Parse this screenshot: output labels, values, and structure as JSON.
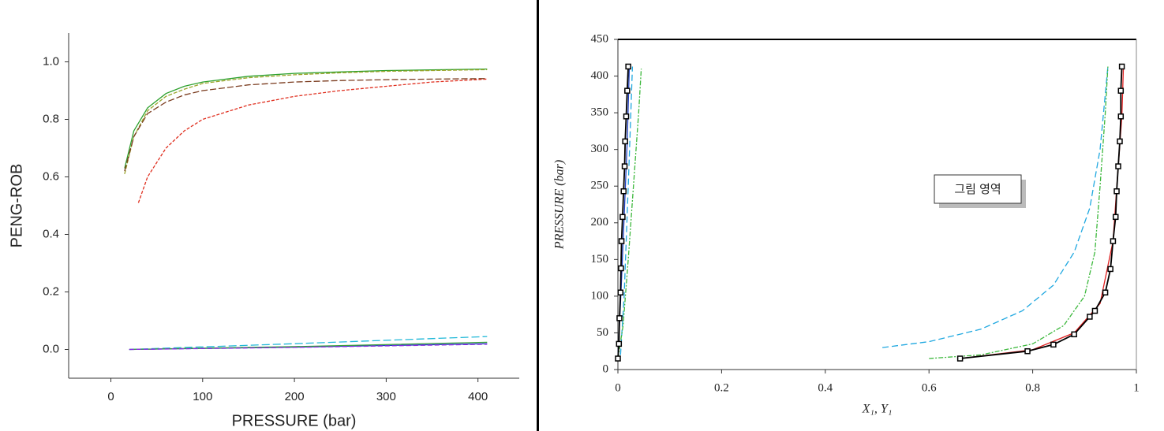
{
  "chart_data": [
    {
      "type": "line",
      "x_label": "PRESSURE (bar)",
      "y_label": "PENG-ROB",
      "xlim": [
        -46,
        445
      ],
      "xticks": [
        0,
        100,
        200,
        300,
        400
      ],
      "ylim": [
        -0.1,
        1.1
      ],
      "yticks": [
        {
          "value": 0,
          "label": "0.0"
        },
        {
          "value": 0.2,
          "label": "0.2"
        },
        {
          "value": 0.4,
          "label": "0.4"
        },
        {
          "value": 0.6,
          "label": "0.6"
        },
        {
          "value": 0.8,
          "label": "0.8"
        },
        {
          "value": 1.0,
          "label": "1.0"
        }
      ],
      "grid": false,
      "frame": false,
      "series": [
        {
          "color": "#2ca02c",
          "x": [
            15,
            25,
            40,
            60,
            80,
            100,
            150,
            200,
            250,
            300,
            350,
            410
          ],
          "values": [
            0.63,
            0.76,
            0.84,
            0.89,
            0.915,
            0.93,
            0.95,
            0.96,
            0.965,
            0.97,
            0.972,
            0.975
          ]
        },
        {
          "color": "#9aa52a",
          "dash": "5,2",
          "x": [
            15,
            25,
            40,
            60,
            80,
            100,
            150,
            200,
            250,
            300,
            350,
            410
          ],
          "values": [
            0.61,
            0.74,
            0.83,
            0.88,
            0.905,
            0.925,
            0.945,
            0.955,
            0.962,
            0.967,
            0.97,
            0.973
          ]
        },
        {
          "color": "#7a3b1e",
          "dash": "8,3",
          "x": [
            15,
            25,
            40,
            60,
            80,
            100,
            150,
            200,
            250,
            300,
            350,
            410
          ],
          "values": [
            0.62,
            0.74,
            0.82,
            0.86,
            0.885,
            0.9,
            0.92,
            0.93,
            0.935,
            0.938,
            0.94,
            0.942
          ]
        },
        {
          "color": "#e03020",
          "dash": "4,2",
          "x": [
            30,
            40,
            60,
            80,
            100,
            150,
            200,
            250,
            300,
            350,
            410
          ],
          "values": [
            0.51,
            0.6,
            0.7,
            0.76,
            0.8,
            0.85,
            0.88,
            0.9,
            0.915,
            0.93,
            0.94
          ]
        },
        {
          "color": "#1f3fbf",
          "x": [
            20,
            200,
            410
          ],
          "values": [
            0,
            0.008,
            0.02
          ]
        },
        {
          "color": "#20b8d8",
          "dash": "10,4",
          "x": [
            20,
            200,
            410
          ],
          "values": [
            0,
            0.02,
            0.045
          ]
        },
        {
          "color": "#3aa03a",
          "x": [
            20,
            200,
            410
          ],
          "values": [
            0,
            0.01,
            0.025
          ]
        },
        {
          "color": "#8a2be2",
          "dash": "6,3",
          "x": [
            20,
            200,
            410
          ],
          "values": [
            0,
            0.007,
            0.018
          ]
        }
      ]
    },
    {
      "type": "line",
      "x_label": "X₁, Y₁",
      "y_label": "PRESSURE (bar)",
      "xlim": [
        0,
        1
      ],
      "xticks": [
        0,
        0.2,
        0.4,
        0.6,
        0.8,
        1
      ],
      "ylim": [
        0,
        450
      ],
      "yticks": [
        0,
        50,
        100,
        150,
        200,
        250,
        300,
        350,
        400,
        450
      ],
      "grid": false,
      "frame": true,
      "annotation": "그림 영역",
      "series": [
        {
          "color": "#20a8e0",
          "dash": "8,4",
          "x": [
            0.005,
            0.012,
            0.02,
            0.025,
            0.028,
            null,
            0.51,
            0.6,
            0.7,
            0.78,
            0.84,
            0.88,
            0.91,
            0.93,
            0.945
          ],
          "values": [
            20,
            100,
            250,
            350,
            413,
            null,
            30,
            38,
            55,
            80,
            115,
            160,
            220,
            300,
            413
          ]
        },
        {
          "color": "#3cb83c",
          "dash": "6,2,2,2",
          "x": [
            0,
            0.01,
            0.02,
            0.03,
            0.04,
            0.045,
            null,
            0.6,
            0.7,
            0.8,
            0.86,
            0.9,
            0.92,
            0.93,
            0.94,
            0.945
          ],
          "values": [
            15,
            60,
            150,
            250,
            350,
            410,
            null,
            15,
            20,
            35,
            60,
            100,
            160,
            250,
            350,
            413
          ]
        },
        {
          "color": "#1f3fbf",
          "x": [
            0,
            0.006,
            0.012,
            0.018,
            0.022
          ],
          "values": [
            15,
            105,
            208,
            311,
            413
          ]
        },
        {
          "color": "#e02020",
          "x": [
            0.66,
            0.8,
            0.88,
            0.93,
            0.955,
            0.965,
            0.972,
            0.975
          ],
          "values": [
            15,
            27,
            50,
            90,
            175,
            277,
            345,
            413
          ]
        },
        {
          "color": "#000000",
          "marker": "square",
          "x": [
            0,
            0.002,
            0.003,
            0.005,
            0.006,
            0.007,
            0.009,
            0.011,
            0.013,
            0.014,
            0.016,
            0.018,
            0.02,
            null,
            0.66,
            0.79,
            0.84,
            0.88,
            0.91,
            0.92,
            0.94,
            0.95,
            0.955,
            0.96,
            0.962,
            0.965,
            0.968,
            0.97,
            0.97,
            0.972
          ],
          "values": [
            15,
            35,
            70,
            105,
            138,
            175,
            208,
            243,
            277,
            311,
            345,
            380,
            413,
            null,
            15,
            25,
            34,
            48,
            72,
            80,
            105,
            137,
            175,
            208,
            243,
            277,
            311,
            345,
            380,
            413
          ]
        }
      ]
    }
  ]
}
